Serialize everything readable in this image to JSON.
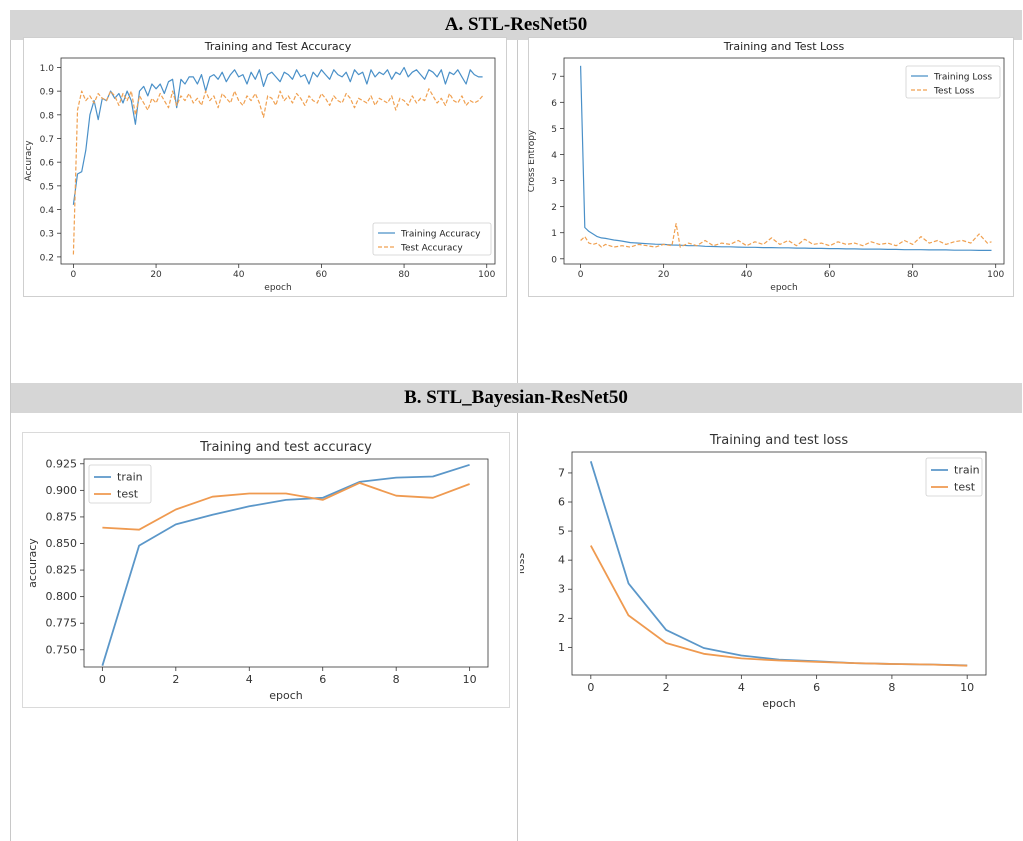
{
  "sections": {
    "a_title": "A. STL-ResNet50",
    "b_title": "B. STL_Bayesian-ResNet50"
  },
  "colors": {
    "train": "#4a90c8",
    "test": "#f0a050",
    "train_b": "#5b97c9",
    "test_b": "#ef9a50"
  },
  "chart_data": [
    {
      "type": "line",
      "title": "Training and Test Accuracy",
      "xlabel": "epoch",
      "ylabel": "Accuracy",
      "xlim": [
        -3,
        102
      ],
      "ylim": [
        0.17,
        1.04
      ],
      "xticks": [
        0,
        20,
        40,
        60,
        80,
        100
      ],
      "yticks": [
        0.2,
        0.3,
        0.4,
        0.5,
        0.6,
        0.7,
        0.8,
        0.9,
        1.0
      ],
      "ytick_labels": [
        "0.2",
        "0.3",
        "0.4",
        "0.5",
        "0.6",
        "0.7",
        "0.8",
        "0.9",
        "1.0"
      ],
      "legend": "lower-right",
      "series": [
        {
          "name": "Training Accuracy",
          "style": "solid",
          "x": [
            0,
            1,
            2,
            3,
            4,
            5,
            6,
            7,
            8,
            9,
            10,
            11,
            12,
            13,
            14,
            15,
            16,
            17,
            18,
            19,
            20,
            21,
            22,
            23,
            24,
            25,
            26,
            27,
            28,
            29,
            30,
            31,
            32,
            33,
            34,
            35,
            36,
            37,
            38,
            39,
            40,
            41,
            42,
            43,
            44,
            45,
            46,
            47,
            48,
            49,
            50,
            51,
            52,
            53,
            54,
            55,
            56,
            57,
            58,
            59,
            60,
            61,
            62,
            63,
            64,
            65,
            66,
            67,
            68,
            69,
            70,
            71,
            72,
            73,
            74,
            75,
            76,
            77,
            78,
            79,
            80,
            81,
            82,
            83,
            84,
            85,
            86,
            87,
            88,
            89,
            90,
            91,
            92,
            93,
            94,
            95,
            96,
            97,
            98,
            99
          ],
          "y": [
            0.42,
            0.55,
            0.56,
            0.65,
            0.8,
            0.86,
            0.78,
            0.87,
            0.86,
            0.9,
            0.87,
            0.89,
            0.85,
            0.9,
            0.86,
            0.76,
            0.9,
            0.92,
            0.88,
            0.93,
            0.91,
            0.93,
            0.89,
            0.94,
            0.95,
            0.83,
            0.95,
            0.93,
            0.96,
            0.96,
            0.93,
            0.97,
            0.9,
            0.96,
            0.97,
            0.95,
            0.98,
            0.94,
            0.97,
            0.99,
            0.96,
            0.97,
            0.93,
            0.98,
            0.95,
            0.99,
            0.92,
            0.97,
            0.98,
            0.96,
            0.94,
            0.98,
            0.97,
            0.95,
            0.99,
            0.96,
            0.97,
            0.93,
            0.98,
            0.96,
            0.99,
            0.97,
            0.95,
            0.99,
            0.97,
            0.96,
            0.98,
            0.94,
            0.99,
            0.97,
            0.98,
            0.93,
            0.99,
            0.96,
            0.98,
            0.97,
            0.99,
            0.95,
            0.98,
            0.97,
            1.0,
            0.96,
            0.98,
            0.99,
            0.97,
            0.95,
            0.99,
            0.98,
            0.96,
            0.99,
            0.93,
            0.98,
            0.97,
            0.99,
            0.96,
            0.93,
            0.99,
            0.97,
            0.96,
            0.96
          ]
        },
        {
          "name": "Test Accuracy",
          "style": "dashed",
          "x": [
            0,
            1,
            2,
            3,
            4,
            5,
            6,
            7,
            8,
            9,
            10,
            11,
            12,
            13,
            14,
            15,
            16,
            17,
            18,
            19,
            20,
            21,
            22,
            23,
            24,
            25,
            26,
            27,
            28,
            29,
            30,
            31,
            32,
            33,
            34,
            35,
            36,
            37,
            38,
            39,
            40,
            41,
            42,
            43,
            44,
            45,
            46,
            47,
            48,
            49,
            50,
            51,
            52,
            53,
            54,
            55,
            56,
            57,
            58,
            59,
            60,
            61,
            62,
            63,
            64,
            65,
            66,
            67,
            68,
            69,
            70,
            71,
            72,
            73,
            74,
            75,
            76,
            77,
            78,
            79,
            80,
            81,
            82,
            83,
            84,
            85,
            86,
            87,
            88,
            89,
            90,
            91,
            92,
            93,
            94,
            95,
            96,
            97,
            98,
            99
          ],
          "y": [
            0.21,
            0.82,
            0.9,
            0.86,
            0.88,
            0.85,
            0.89,
            0.87,
            0.86,
            0.9,
            0.88,
            0.84,
            0.89,
            0.86,
            0.9,
            0.8,
            0.88,
            0.85,
            0.82,
            0.87,
            0.85,
            0.89,
            0.86,
            0.83,
            0.9,
            0.84,
            0.88,
            0.86,
            0.89,
            0.85,
            0.87,
            0.84,
            0.9,
            0.86,
            0.88,
            0.83,
            0.89,
            0.87,
            0.85,
            0.9,
            0.86,
            0.84,
            0.88,
            0.86,
            0.89,
            0.85,
            0.79,
            0.88,
            0.87,
            0.84,
            0.9,
            0.86,
            0.88,
            0.85,
            0.89,
            0.87,
            0.84,
            0.88,
            0.86,
            0.85,
            0.89,
            0.87,
            0.84,
            0.88,
            0.86,
            0.85,
            0.89,
            0.87,
            0.83,
            0.87,
            0.86,
            0.85,
            0.88,
            0.84,
            0.87,
            0.86,
            0.85,
            0.88,
            0.82,
            0.87,
            0.86,
            0.84,
            0.88,
            0.85,
            0.87,
            0.86,
            0.91,
            0.88,
            0.85,
            0.87,
            0.84,
            0.89,
            0.86,
            0.85,
            0.88,
            0.84,
            0.86,
            0.85,
            0.86,
            0.88
          ]
        }
      ]
    },
    {
      "type": "line",
      "title": "Training and Test Loss",
      "xlabel": "epoch",
      "ylabel": "Cross Entropy",
      "xlim": [
        -4,
        102
      ],
      "ylim": [
        -0.2,
        7.7
      ],
      "xticks": [
        0,
        20,
        40,
        60,
        80,
        100
      ],
      "yticks": [
        0,
        1,
        2,
        3,
        4,
        5,
        6,
        7
      ],
      "legend": "upper-right",
      "series": [
        {
          "name": "Training Loss",
          "style": "solid",
          "x": [
            0,
            1,
            2,
            3,
            4,
            5,
            6,
            7,
            8,
            9,
            10,
            12,
            14,
            16,
            18,
            20,
            22,
            24,
            26,
            28,
            30,
            32,
            34,
            36,
            38,
            40,
            42,
            44,
            46,
            48,
            50,
            52,
            54,
            56,
            58,
            60,
            62,
            64,
            66,
            68,
            70,
            72,
            74,
            76,
            78,
            80,
            82,
            84,
            86,
            88,
            90,
            92,
            94,
            96,
            98,
            99
          ],
          "y": [
            7.4,
            1.2,
            1.05,
            0.95,
            0.85,
            0.8,
            0.78,
            0.75,
            0.72,
            0.7,
            0.68,
            0.62,
            0.6,
            0.58,
            0.56,
            0.55,
            0.53,
            0.52,
            0.5,
            0.5,
            0.48,
            0.47,
            0.46,
            0.46,
            0.45,
            0.44,
            0.44,
            0.43,
            0.43,
            0.42,
            0.42,
            0.41,
            0.41,
            0.4,
            0.4,
            0.39,
            0.39,
            0.38,
            0.38,
            0.37,
            0.37,
            0.37,
            0.36,
            0.36,
            0.35,
            0.35,
            0.35,
            0.34,
            0.34,
            0.34,
            0.33,
            0.33,
            0.33,
            0.32,
            0.32,
            0.32
          ]
        },
        {
          "name": "Test Loss",
          "style": "dashed",
          "x": [
            0,
            1,
            2,
            3,
            4,
            5,
            6,
            7,
            8,
            10,
            12,
            14,
            16,
            18,
            20,
            22,
            23,
            24,
            26,
            28,
            30,
            32,
            34,
            36,
            38,
            40,
            42,
            44,
            46,
            48,
            50,
            52,
            54,
            56,
            58,
            60,
            62,
            64,
            66,
            68,
            70,
            72,
            74,
            76,
            78,
            80,
            82,
            84,
            86,
            88,
            90,
            92,
            94,
            96,
            98,
            99
          ],
          "y": [
            0.7,
            0.85,
            0.6,
            0.55,
            0.6,
            0.45,
            0.55,
            0.5,
            0.45,
            0.5,
            0.45,
            0.55,
            0.5,
            0.45,
            0.55,
            0.5,
            1.35,
            0.45,
            0.6,
            0.5,
            0.7,
            0.5,
            0.6,
            0.55,
            0.7,
            0.5,
            0.65,
            0.55,
            0.8,
            0.55,
            0.7,
            0.5,
            0.75,
            0.55,
            0.6,
            0.5,
            0.65,
            0.55,
            0.6,
            0.5,
            0.65,
            0.55,
            0.6,
            0.5,
            0.7,
            0.55,
            0.85,
            0.6,
            0.7,
            0.55,
            0.65,
            0.7,
            0.6,
            0.95,
            0.6,
            0.65
          ]
        }
      ]
    },
    {
      "type": "line",
      "title": "Training and test accuracy",
      "xlabel": "epoch",
      "ylabel": "accuracy",
      "xlim": [
        -0.5,
        10.5
      ],
      "ylim": [
        0.7338,
        0.9295
      ],
      "xticks": [
        0,
        2,
        4,
        6,
        8,
        10
      ],
      "yticks": [
        0.75,
        0.775,
        0.8,
        0.825,
        0.85,
        0.875,
        0.9,
        0.925
      ],
      "ytick_labels": [
        "0.750",
        "0.775",
        "0.800",
        "0.825",
        "0.850",
        "0.875",
        "0.900",
        "0.925"
      ],
      "legend": "upper-left",
      "series": [
        {
          "name": "train",
          "x": [
            0,
            1,
            2,
            3,
            4,
            5,
            6,
            7,
            8,
            9,
            10
          ],
          "y": [
            0.735,
            0.848,
            0.868,
            0.877,
            0.885,
            0.891,
            0.893,
            0.908,
            0.912,
            0.913,
            0.924
          ]
        },
        {
          "name": "test",
          "x": [
            0,
            1,
            2,
            3,
            4,
            5,
            6,
            7,
            8,
            9,
            10
          ],
          "y": [
            0.865,
            0.863,
            0.882,
            0.894,
            0.897,
            0.897,
            0.891,
            0.907,
            0.895,
            0.893,
            0.906
          ]
        }
      ]
    },
    {
      "type": "line",
      "title": "Training and test loss",
      "xlabel": "epoch",
      "ylabel": "loss",
      "xlim": [
        -0.5,
        10.5
      ],
      "ylim": [
        0.05,
        7.72
      ],
      "xticks": [
        0,
        2,
        4,
        6,
        8,
        10
      ],
      "yticks": [
        1,
        2,
        3,
        4,
        5,
        6,
        7
      ],
      "legend": "upper-right",
      "series": [
        {
          "name": "train",
          "x": [
            0,
            1,
            2,
            3,
            4,
            5,
            6,
            7,
            8,
            9,
            10
          ],
          "y": [
            7.4,
            3.2,
            1.6,
            0.98,
            0.72,
            0.58,
            0.52,
            0.46,
            0.43,
            0.41,
            0.38
          ]
        },
        {
          "name": "test",
          "x": [
            0,
            1,
            2,
            3,
            4,
            5,
            6,
            7,
            8,
            9,
            10
          ],
          "y": [
            4.5,
            2.1,
            1.15,
            0.78,
            0.62,
            0.55,
            0.5,
            0.46,
            0.43,
            0.41,
            0.37
          ]
        }
      ]
    }
  ]
}
